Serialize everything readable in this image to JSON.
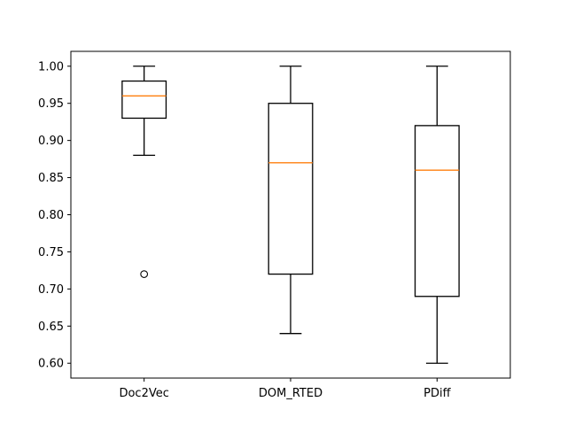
{
  "chart_data": {
    "type": "box",
    "title": "",
    "xlabel": "",
    "ylabel": "",
    "categories": [
      "Doc2Vec",
      "DOM_RTED",
      "PDiff"
    ],
    "ylim": [
      0.58,
      1.02
    ],
    "yticks": [
      "0.60",
      "0.65",
      "0.70",
      "0.75",
      "0.80",
      "0.85",
      "0.90",
      "0.95",
      "1.00"
    ],
    "grid": false,
    "legend": "none",
    "boxes": [
      {
        "label": "Doc2Vec",
        "whisker_low": 0.88,
        "q1": 0.93,
        "median": 0.96,
        "q3": 0.98,
        "whisker_high": 1.0,
        "outliers": [
          0.72
        ]
      },
      {
        "label": "DOM_RTED",
        "whisker_low": 0.64,
        "q1": 0.72,
        "median": 0.87,
        "q3": 0.95,
        "whisker_high": 1.0,
        "outliers": []
      },
      {
        "label": "PDiff",
        "whisker_low": 0.6,
        "q1": 0.69,
        "median": 0.86,
        "q3": 0.92,
        "whisker_high": 1.0,
        "outliers": []
      }
    ],
    "colors": {
      "box": "#000000",
      "median": "#ff7f0e",
      "axes": "#000000",
      "background": "#ffffff"
    }
  }
}
